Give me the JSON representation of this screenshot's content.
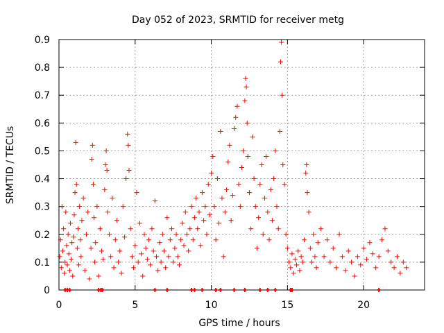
{
  "chart_data": {
    "type": "scatter",
    "title": "Day 052 of 2023, SRMTID for receiver metg",
    "xlabel": "GPS time / hours",
    "ylabel": "SRMTID / TECUs",
    "xlim": [
      0,
      24
    ],
    "ylim": [
      0,
      0.9
    ],
    "x_ticks": [
      0,
      5,
      10,
      15,
      20
    ],
    "x_tick_labels": [
      "0",
      "5",
      "10",
      "15",
      "20"
    ],
    "y_ticks": [
      0,
      0.1,
      0.2,
      0.3,
      0.4,
      0.5,
      0.6,
      0.7,
      0.8,
      0.9
    ],
    "y_tick_labels": [
      "0",
      "0.1",
      "0.2",
      "0.3",
      "0.4",
      "0.5",
      "0.6",
      "0.7",
      "0.8",
      "0.9"
    ],
    "grid": true,
    "marker": "+",
    "color": "#ff0000",
    "series": [
      {
        "name": "SRMTID",
        "points": [
          [
            0.05,
            0.12
          ],
          [
            0.1,
            0.18
          ],
          [
            0.15,
            0.08
          ],
          [
            0.2,
            0.3
          ],
          [
            0.25,
            0.14
          ],
          [
            0.3,
            0.22
          ],
          [
            0.35,
            0.06
          ],
          [
            0.4,
            0.1
          ],
          [
            0.45,
            0.28
          ],
          [
            0.5,
            0.16
          ],
          [
            0.55,
            0.09
          ],
          [
            0.6,
            0.2
          ],
          [
            0.65,
            0.13
          ],
          [
            0.7,
            0.07
          ],
          [
            0.75,
            0.24
          ],
          [
            0.8,
            0.11
          ],
          [
            0.85,
            0.17
          ],
          [
            0.9,
            0.05
          ],
          [
            0.95,
            0.19
          ],
          [
            1.0,
            0.27
          ],
          [
            1.05,
            0.35
          ],
          [
            1.1,
            0.53
          ],
          [
            1.15,
            0.38
          ],
          [
            1.2,
            0.15
          ],
          [
            1.25,
            0.22
          ],
          [
            1.3,
            0.09
          ],
          [
            1.35,
            0.3
          ],
          [
            1.4,
            0.18
          ],
          [
            1.45,
            0.12
          ],
          [
            1.5,
            0.25
          ],
          [
            1.6,
            0.33
          ],
          [
            1.7,
            0.07
          ],
          [
            1.8,
            0.2
          ],
          [
            1.9,
            0.28
          ],
          [
            2.0,
            0.04
          ],
          [
            2.1,
            0.15
          ],
          [
            2.15,
            0.47
          ],
          [
            2.2,
            0.52
          ],
          [
            2.25,
            0.38
          ],
          [
            2.3,
            0.26
          ],
          [
            2.35,
            0.1
          ],
          [
            2.4,
            0.17
          ],
          [
            2.5,
            0.3
          ],
          [
            2.6,
            0.05
          ],
          [
            2.7,
            0.22
          ],
          [
            2.8,
            0.14
          ],
          [
            2.9,
            0.11
          ],
          [
            3.0,
            0.36
          ],
          [
            3.05,
            0.45
          ],
          [
            3.1,
            0.5
          ],
          [
            3.15,
            0.43
          ],
          [
            3.2,
            0.28
          ],
          [
            3.3,
            0.2
          ],
          [
            3.4,
            0.12
          ],
          [
            3.5,
            0.33
          ],
          [
            3.6,
            0.08
          ],
          [
            3.7,
            0.18
          ],
          [
            3.8,
            0.25
          ],
          [
            3.9,
            0.1
          ],
          [
            4.0,
            0.14
          ],
          [
            4.1,
            0.06
          ],
          [
            4.2,
            0.3
          ],
          [
            4.3,
            0.19
          ],
          [
            4.4,
            0.4
          ],
          [
            4.5,
            0.56
          ],
          [
            4.55,
            0.52
          ],
          [
            4.6,
            0.43
          ],
          [
            4.7,
            0.22
          ],
          [
            4.8,
            0.12
          ],
          [
            4.9,
            0.08
          ],
          [
            5.0,
            0.16
          ],
          [
            5.1,
            0.35
          ],
          [
            5.2,
            0.1
          ],
          [
            5.3,
            0.24
          ],
          [
            5.4,
            0.13
          ],
          [
            5.5,
            0.05
          ],
          [
            5.6,
            0.2
          ],
          [
            5.7,
            0.15
          ],
          [
            5.8,
            0.11
          ],
          [
            5.9,
            0.18
          ],
          [
            6.0,
            0.09
          ],
          [
            6.1,
            0.22
          ],
          [
            6.2,
            0.14
          ],
          [
            6.3,
            0.32
          ],
          [
            6.4,
            0.12
          ],
          [
            6.5,
            0.07
          ],
          [
            6.6,
            0.17
          ],
          [
            6.7,
            0.1
          ],
          [
            6.8,
            0.2
          ],
          [
            6.9,
            0.14
          ],
          [
            7.0,
            0.08
          ],
          [
            7.1,
            0.26
          ],
          [
            7.2,
            0.12
          ],
          [
            7.3,
            0.18
          ],
          [
            7.4,
            0.22
          ],
          [
            7.5,
            0.1
          ],
          [
            7.6,
            0.15
          ],
          [
            7.7,
            0.2
          ],
          [
            7.8,
            0.12
          ],
          [
            7.9,
            0.09
          ],
          [
            8.0,
            0.18
          ],
          [
            8.1,
            0.24
          ],
          [
            8.2,
            0.16
          ],
          [
            8.3,
            0.28
          ],
          [
            8.4,
            0.2
          ],
          [
            8.5,
            0.14
          ],
          [
            8.6,
            0.22
          ],
          [
            8.7,
            0.3
          ],
          [
            8.8,
            0.18
          ],
          [
            8.9,
            0.26
          ],
          [
            9.0,
            0.33
          ],
          [
            9.1,
            0.22
          ],
          [
            9.2,
            0.28
          ],
          [
            9.3,
            0.16
          ],
          [
            9.4,
            0.35
          ],
          [
            9.5,
            0.25
          ],
          [
            9.6,
            0.3
          ],
          [
            9.7,
            0.2
          ],
          [
            9.8,
            0.38
          ],
          [
            9.9,
            0.27
          ],
          [
            10.0,
            0.42
          ],
          [
            10.1,
            0.48
          ],
          [
            10.2,
            0.3
          ],
          [
            10.3,
            0.18
          ],
          [
            10.4,
            0.4
          ],
          [
            10.5,
            0.24
          ],
          [
            10.6,
            0.57
          ],
          [
            10.7,
            0.33
          ],
          [
            10.8,
            0.12
          ],
          [
            10.9,
            0.28
          ],
          [
            11.0,
            0.36
          ],
          [
            11.1,
            0.46
          ],
          [
            11.2,
            0.52
          ],
          [
            11.3,
            0.25
          ],
          [
            11.4,
            0.34
          ],
          [
            11.5,
            0.58
          ],
          [
            11.6,
            0.62
          ],
          [
            11.7,
            0.66
          ],
          [
            11.8,
            0.38
          ],
          [
            11.9,
            0.3
          ],
          [
            12.0,
            0.44
          ],
          [
            12.1,
            0.5
          ],
          [
            12.2,
            0.68
          ],
          [
            12.25,
            0.76
          ],
          [
            12.3,
            0.73
          ],
          [
            12.35,
            0.6
          ],
          [
            12.4,
            0.48
          ],
          [
            12.5,
            0.35
          ],
          [
            12.6,
            0.22
          ],
          [
            12.7,
            0.55
          ],
          [
            12.8,
            0.4
          ],
          [
            12.9,
            0.3
          ],
          [
            13.0,
            0.15
          ],
          [
            13.1,
            0.26
          ],
          [
            13.2,
            0.38
          ],
          [
            13.3,
            0.45
          ],
          [
            13.4,
            0.2
          ],
          [
            13.5,
            0.33
          ],
          [
            13.6,
            0.48
          ],
          [
            13.7,
            0.28
          ],
          [
            13.8,
            0.18
          ],
          [
            13.9,
            0.36
          ],
          [
            14.0,
            0.25
          ],
          [
            14.1,
            0.4
          ],
          [
            14.2,
            0.5
          ],
          [
            14.3,
            0.3
          ],
          [
            14.4,
            0.22
          ],
          [
            14.5,
            0.57
          ],
          [
            14.55,
            0.82
          ],
          [
            14.6,
            0.89
          ],
          [
            14.65,
            0.7
          ],
          [
            14.7,
            0.45
          ],
          [
            14.8,
            0.38
          ],
          [
            14.9,
            0.2
          ],
          [
            15.0,
            0.15
          ],
          [
            15.1,
            0.1
          ],
          [
            15.2,
            0.08
          ],
          [
            15.3,
            0.13
          ],
          [
            15.4,
            0.06
          ],
          [
            15.5,
            0.11
          ],
          [
            15.6,
            0.09
          ],
          [
            15.7,
            0.14
          ],
          [
            15.8,
            0.07
          ],
          [
            15.9,
            0.12
          ],
          [
            16.0,
            0.1
          ],
          [
            16.1,
            0.18
          ],
          [
            16.2,
            0.42
          ],
          [
            16.25,
            0.45
          ],
          [
            16.3,
            0.35
          ],
          [
            16.4,
            0.28
          ],
          [
            16.5,
            0.15
          ],
          [
            16.6,
            0.1
          ],
          [
            16.7,
            0.2
          ],
          [
            16.8,
            0.12
          ],
          [
            16.9,
            0.08
          ],
          [
            17.0,
            0.17
          ],
          [
            17.2,
            0.22
          ],
          [
            17.4,
            0.12
          ],
          [
            17.6,
            0.18
          ],
          [
            17.8,
            0.1
          ],
          [
            18.0,
            0.15
          ],
          [
            18.2,
            0.08
          ],
          [
            18.4,
            0.2
          ],
          [
            18.6,
            0.12
          ],
          [
            18.8,
            0.07
          ],
          [
            19.0,
            0.14
          ],
          [
            19.2,
            0.1
          ],
          [
            19.4,
            0.05
          ],
          [
            19.6,
            0.12
          ],
          [
            19.8,
            0.09
          ],
          [
            20.0,
            0.15
          ],
          [
            20.2,
            0.11
          ],
          [
            20.4,
            0.17
          ],
          [
            20.6,
            0.13
          ],
          [
            20.8,
            0.08
          ],
          [
            21.0,
            0.12
          ],
          [
            21.2,
            0.18
          ],
          [
            21.4,
            0.22
          ],
          [
            21.6,
            0.14
          ],
          [
            21.8,
            0.1
          ],
          [
            22.0,
            0.08
          ],
          [
            22.2,
            0.12
          ],
          [
            22.4,
            0.06
          ],
          [
            22.6,
            0.1
          ],
          [
            22.8,
            0.08
          ]
        ]
      }
    ],
    "baseline_x": [
      0.4,
      0.55,
      0.7,
      2.6,
      2.75,
      2.85,
      6.3,
      7.1,
      8.7,
      8.9,
      9.4,
      10.3,
      10.6,
      11.5,
      12.2,
      13.2,
      13.7,
      14.2,
      15.2,
      15.3,
      21.0
    ]
  }
}
